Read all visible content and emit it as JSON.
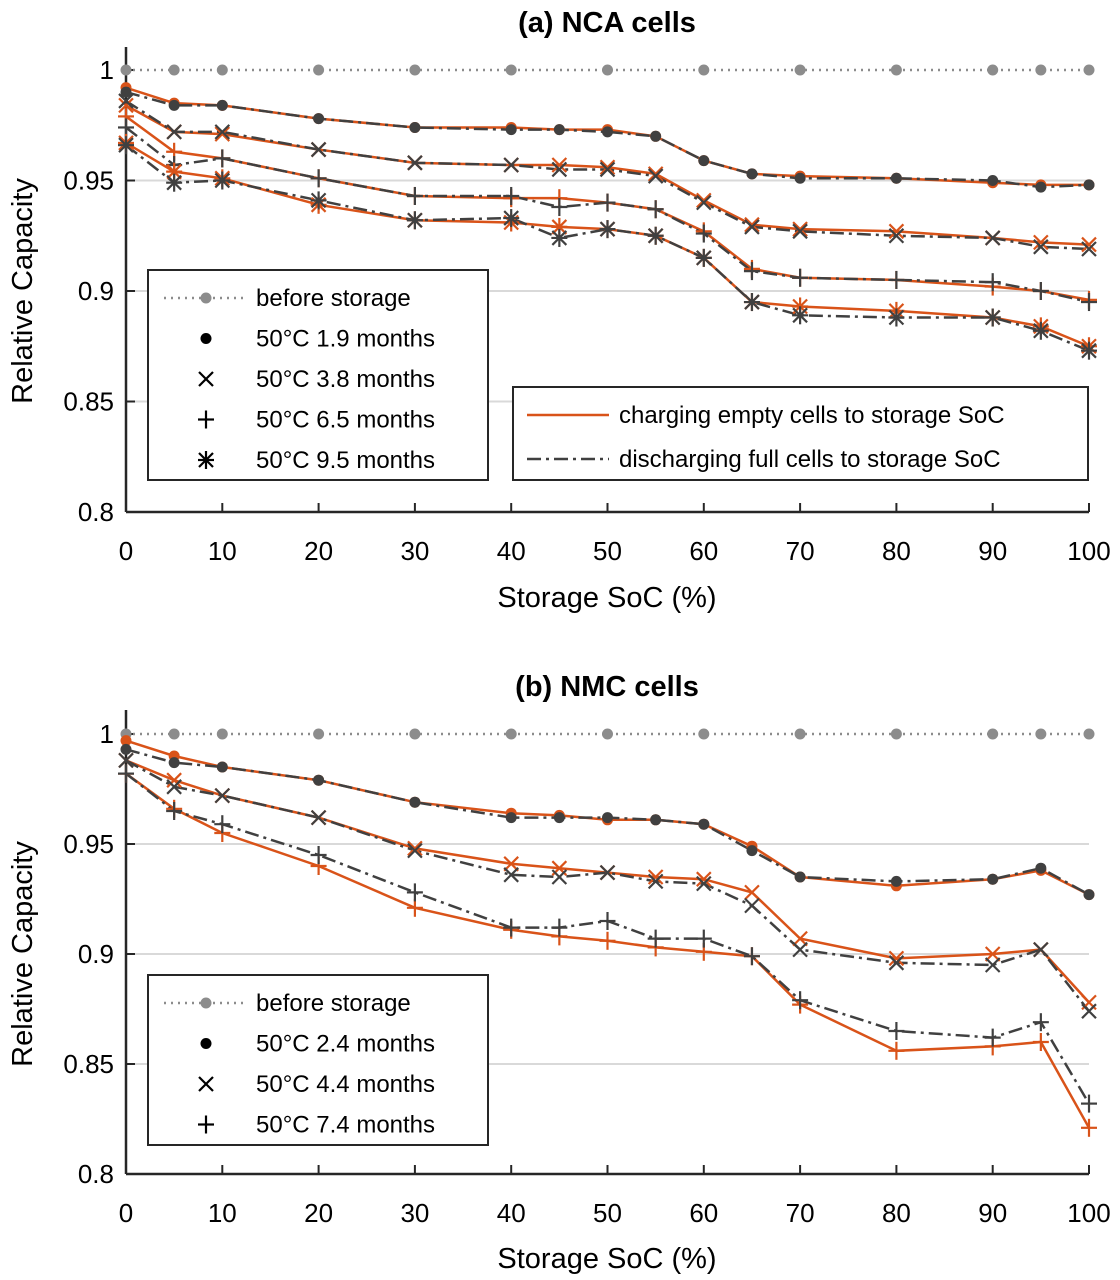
{
  "colors": {
    "charging": "#d95319",
    "discharging": "#404040",
    "before_storage": "#8c8c8c",
    "grid": "#d9d9d9"
  },
  "chart_data": [
    {
      "type": "line",
      "title": "(a) NCA cells",
      "xlabel": "Storage SoC (%)",
      "ylabel": "Relative Capacity",
      "xlim": [
        0,
        100
      ],
      "ylim": [
        0.8,
        1.0
      ],
      "grid": "horizontal",
      "xticks": [
        0,
        10,
        20,
        30,
        40,
        50,
        60,
        70,
        80,
        90,
        100
      ],
      "yticks": [
        0.8,
        0.85,
        0.9,
        0.95,
        1
      ],
      "ytick_labels": [
        "0.8",
        "0.85",
        "0.9",
        "0.95",
        "1"
      ],
      "before_storage": {
        "name": "before storage",
        "marker": "dot",
        "x": [
          0,
          5,
          10,
          20,
          30,
          40,
          50,
          60,
          70,
          80,
          90,
          95,
          100
        ],
        "values": [
          1,
          1,
          1,
          1,
          1,
          1,
          1,
          1,
          1,
          1,
          1,
          1,
          1
        ]
      },
      "x": [
        0,
        5,
        10,
        20,
        30,
        40,
        45,
        50,
        55,
        60,
        65,
        70,
        80,
        90,
        95,
        100
      ],
      "series": [
        {
          "name": "50°C  1.9 months",
          "marker": "dot",
          "charging": [
            0.992,
            0.985,
            0.984,
            0.978,
            0.974,
            0.974,
            0.973,
            0.973,
            0.97,
            0.959,
            0.953,
            0.952,
            0.951,
            0.949,
            0.948,
            0.948
          ],
          "discharging": [
            0.99,
            0.984,
            0.984,
            0.978,
            0.974,
            0.973,
            0.973,
            0.972,
            0.97,
            0.959,
            0.953,
            0.951,
            0.951,
            0.95,
            0.947,
            0.948
          ]
        },
        {
          "name": "50°C  3.8 months",
          "marker": "x",
          "charging": [
            0.984,
            0.972,
            0.971,
            0.964,
            0.958,
            0.957,
            0.957,
            0.956,
            0.953,
            0.941,
            0.93,
            0.928,
            0.927,
            0.924,
            0.922,
            0.921
          ],
          "discharging": [
            0.986,
            0.972,
            0.972,
            0.964,
            0.958,
            0.957,
            0.955,
            0.955,
            0.952,
            0.94,
            0.929,
            0.927,
            0.925,
            0.924,
            0.92,
            0.919
          ]
        },
        {
          "name": "50°C  6.5 months",
          "marker": "plus",
          "charging": [
            0.979,
            0.963,
            0.96,
            0.951,
            0.943,
            0.942,
            0.942,
            0.94,
            0.937,
            0.927,
            0.91,
            0.906,
            0.905,
            0.902,
            0.9,
            0.896
          ],
          "discharging": [
            0.974,
            0.957,
            0.96,
            0.951,
            0.943,
            0.943,
            0.938,
            0.94,
            0.937,
            0.926,
            0.909,
            0.906,
            0.905,
            0.904,
            0.9,
            0.895
          ]
        },
        {
          "name": "50°C  9.5 months",
          "marker": "asterisk",
          "charging": [
            0.967,
            0.954,
            0.951,
            0.939,
            0.932,
            0.931,
            0.929,
            0.928,
            0.925,
            0.915,
            0.895,
            0.893,
            0.891,
            0.888,
            0.884,
            0.875
          ],
          "discharging": [
            0.966,
            0.949,
            0.95,
            0.941,
            0.932,
            0.933,
            0.924,
            0.928,
            0.925,
            0.915,
            0.895,
            0.889,
            0.888,
            0.888,
            0.882,
            0.873
          ]
        }
      ],
      "line_legend": [
        {
          "key": "charging",
          "label": "charging empty cells to storage SoC"
        },
        {
          "key": "discharging",
          "label": "discharging full cells to storage SoC"
        }
      ]
    },
    {
      "type": "line",
      "title": "(b) NMC cells",
      "xlabel": "Storage SoC (%)",
      "ylabel": "Relative Capacity",
      "xlim": [
        0,
        100
      ],
      "ylim": [
        0.8,
        1.0
      ],
      "grid": "horizontal",
      "xticks": [
        0,
        10,
        20,
        30,
        40,
        50,
        60,
        70,
        80,
        90,
        100
      ],
      "yticks": [
        0.8,
        0.85,
        0.9,
        0.95,
        1
      ],
      "ytick_labels": [
        "0.8",
        "0.85",
        "0.9",
        "0.95",
        "1"
      ],
      "before_storage": {
        "name": "before storage",
        "marker": "dot",
        "x": [
          0,
          5,
          10,
          20,
          30,
          40,
          50,
          60,
          70,
          80,
          90,
          95,
          100
        ],
        "values": [
          1,
          1,
          1,
          1,
          1,
          1,
          1,
          1,
          1,
          1,
          1,
          1,
          1
        ]
      },
      "x": [
        0,
        5,
        10,
        20,
        30,
        40,
        45,
        50,
        55,
        60,
        65,
        70,
        80,
        90,
        95,
        100
      ],
      "series": [
        {
          "name": "50°C  2.4 months",
          "marker": "dot",
          "charging": [
            0.997,
            0.99,
            0.985,
            0.979,
            0.969,
            0.964,
            0.963,
            0.961,
            0.961,
            0.959,
            0.949,
            0.935,
            0.931,
            0.934,
            0.938,
            0.927
          ],
          "discharging": [
            0.993,
            0.987,
            0.985,
            0.979,
            0.969,
            0.962,
            0.962,
            0.962,
            0.961,
            0.959,
            0.947,
            0.935,
            0.933,
            0.934,
            0.939,
            0.927
          ]
        },
        {
          "name": "50°C  4.4 months",
          "marker": "x",
          "charging": [
            0.988,
            0.979,
            0.972,
            0.962,
            0.948,
            0.941,
            0.939,
            0.937,
            0.935,
            0.934,
            0.928,
            0.907,
            0.898,
            0.9,
            0.902,
            0.878
          ],
          "discharging": [
            0.988,
            0.976,
            0.972,
            0.962,
            0.947,
            0.936,
            0.935,
            0.937,
            0.933,
            0.932,
            0.922,
            0.902,
            0.896,
            0.895,
            0.902,
            0.874
          ]
        },
        {
          "name": "50°C  7.4 months",
          "marker": "plus",
          "charging": [
            0.982,
            0.966,
            0.955,
            0.94,
            0.921,
            0.911,
            0.908,
            0.906,
            0.903,
            0.901,
            0.899,
            0.877,
            0.856,
            0.858,
            0.86,
            0.821
          ],
          "discharging": [
            0.982,
            0.965,
            0.959,
            0.945,
            0.928,
            0.912,
            0.912,
            0.915,
            0.907,
            0.907,
            0.899,
            0.879,
            0.865,
            0.862,
            0.869,
            0.832
          ]
        }
      ],
      "line_legend": []
    }
  ]
}
